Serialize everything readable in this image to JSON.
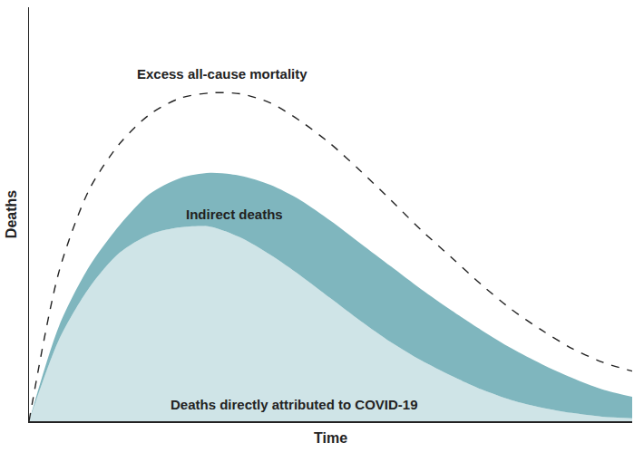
{
  "chart_data": {
    "type": "area",
    "xlabel": "Time",
    "ylabel": "Deaths",
    "x": [
      0,
      5,
      10,
      15,
      20,
      25,
      30,
      35,
      40,
      45,
      50,
      55,
      60,
      65,
      70,
      75,
      80,
      85,
      90,
      95,
      100
    ],
    "series": [
      {
        "name": "Deaths directly attributed to COVID-19",
        "type": "area",
        "color": "#cfe4e7",
        "values": [
          0,
          19.8,
          32.3,
          40.7,
          45.1,
          46.8,
          47.0,
          44.4,
          40.2,
          35.2,
          29.7,
          24.2,
          19.1,
          14.7,
          11.0,
          7.7,
          5.1,
          3.3,
          2.0,
          1.1,
          0.7
        ]
      },
      {
        "name": "Indirect deaths",
        "type": "area",
        "color": "#7fb6be",
        "values": [
          0,
          3.3,
          5.1,
          6.6,
          9.8,
          11.9,
          13.0,
          14.9,
          16.9,
          18.2,
          18.7,
          18.7,
          18.3,
          17.2,
          15.8,
          14.3,
          12.5,
          10.5,
          8.5,
          6.6,
          5.2
        ]
      },
      {
        "name": "Excess all-cause mortality",
        "type": "line",
        "color": "#222222",
        "line_style": "dashed",
        "values": [
          0,
          36.3,
          56.0,
          67.0,
          74.1,
          78.0,
          79.3,
          79.1,
          76.9,
          72.5,
          67.0,
          60.4,
          53.4,
          46.2,
          39.6,
          33.0,
          27.0,
          22.0,
          17.6,
          14.3,
          12.1
        ]
      }
    ],
    "xlim": [
      0,
      100
    ],
    "ylim": [
      0,
      100
    ],
    "xticks": [],
    "yticks": [],
    "tick_labels": false,
    "stacked": true,
    "grid": false
  }
}
